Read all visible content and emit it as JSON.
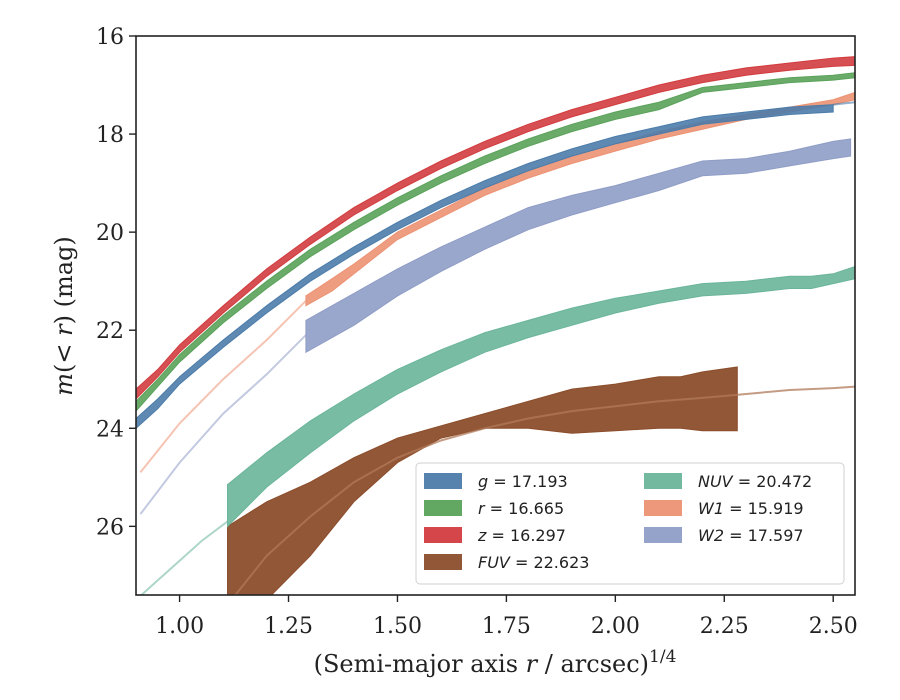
{
  "chart_data": {
    "type": "line",
    "xlabel": "(Semi-major axis r / arcsec)^{1/4}",
    "xlabel_parts": {
      "main": "(Semi-major axis ",
      "var": "r",
      "rest": " / arcsec)",
      "sup": "1/4"
    },
    "ylabel": "m(< r) (mag)",
    "ylabel_parts": {
      "m": "m",
      "paren_open": "(",
      "lt": "<",
      "r": "r",
      "paren_close": ")",
      "unit": " (mag)"
    },
    "xlim": [
      0.9,
      2.55
    ],
    "ylim": [
      27.4,
      16.0
    ],
    "y_inverted": true,
    "x_ticks": [
      1.0,
      1.25,
      1.5,
      1.75,
      2.0,
      2.25,
      2.5
    ],
    "x_tick_labels": [
      "1.00",
      "1.25",
      "1.50",
      "1.75",
      "2.00",
      "2.25",
      "2.50"
    ],
    "y_ticks": [
      16,
      18,
      20,
      22,
      24,
      26
    ],
    "y_tick_labels": [
      "16",
      "18",
      "20",
      "22",
      "24",
      "26"
    ],
    "grid": false,
    "legend_position": "lower-right",
    "legend": [
      {
        "col": 0,
        "row": 0,
        "var": "g",
        "value": "17.193",
        "color": "#4c7caa"
      },
      {
        "col": 0,
        "row": 1,
        "var": "r",
        "value": "16.665",
        "color": "#5aa25a"
      },
      {
        "col": 0,
        "row": 2,
        "var": "z",
        "value": "16.297",
        "color": "#d23c3f"
      },
      {
        "col": 0,
        "row": 3,
        "var": "FUV",
        "value": "22.623",
        "color": "#8c4e2c"
      },
      {
        "col": 1,
        "row": 0,
        "var": "NUV",
        "value": "20.472",
        "color": "#6ab59a"
      },
      {
        "col": 1,
        "row": 1,
        "var": "W1",
        "value": "15.919",
        "color": "#ec9273"
      },
      {
        "col": 1,
        "row": 2,
        "var": "W2",
        "value": "17.597",
        "color": "#8f9dc6"
      }
    ],
    "series": [
      {
        "name": "g",
        "color": "#4c7caa",
        "kind": "band",
        "x": [
          0.9,
          0.95,
          1.0,
          1.1,
          1.2,
          1.3,
          1.4,
          1.5,
          1.6,
          1.7,
          1.8,
          1.9,
          2.0,
          2.1,
          2.2,
          2.3,
          2.4,
          2.5
        ],
        "lo": [
          23.8,
          23.4,
          22.95,
          22.2,
          21.5,
          20.85,
          20.3,
          19.8,
          19.35,
          18.95,
          18.6,
          18.3,
          18.05,
          17.85,
          17.65,
          17.55,
          17.45,
          17.4
        ],
        "hi": [
          24.0,
          23.6,
          23.1,
          22.35,
          21.65,
          21.0,
          20.45,
          19.95,
          19.5,
          19.1,
          18.75,
          18.45,
          18.2,
          18.0,
          17.8,
          17.7,
          17.6,
          17.55
        ],
        "ext_x": [
          2.5,
          2.55
        ],
        "ext_y": [
          17.4,
          17.35
        ]
      },
      {
        "name": "r",
        "color": "#5aa25a",
        "kind": "band",
        "x": [
          0.9,
          0.95,
          1.0,
          1.1,
          1.2,
          1.3,
          1.4,
          1.5,
          1.6,
          1.7,
          1.8,
          1.9,
          2.0,
          2.1,
          2.2,
          2.3,
          2.4,
          2.5,
          2.55
        ],
        "lo": [
          23.45,
          23.0,
          22.5,
          21.7,
          21.0,
          20.35,
          19.8,
          19.3,
          18.85,
          18.45,
          18.1,
          17.8,
          17.55,
          17.35,
          17.05,
          16.95,
          16.85,
          16.8,
          16.75
        ],
        "hi": [
          23.65,
          23.15,
          22.65,
          21.85,
          21.15,
          20.5,
          19.95,
          19.45,
          19.0,
          18.6,
          18.25,
          17.95,
          17.7,
          17.5,
          17.15,
          17.05,
          16.95,
          16.9,
          16.85
        ]
      },
      {
        "name": "z",
        "color": "#d23c3f",
        "kind": "band",
        "x": [
          0.9,
          0.95,
          1.0,
          1.1,
          1.2,
          1.3,
          1.4,
          1.5,
          1.6,
          1.7,
          1.8,
          1.9,
          2.0,
          2.1,
          2.2,
          2.3,
          2.4,
          2.5,
          2.55
        ],
        "lo": [
          23.2,
          22.8,
          22.3,
          21.5,
          20.75,
          20.1,
          19.5,
          19.0,
          18.55,
          18.15,
          17.8,
          17.5,
          17.25,
          17.0,
          16.8,
          16.65,
          16.55,
          16.45,
          16.42
        ],
        "hi": [
          23.4,
          22.95,
          22.45,
          21.65,
          20.9,
          20.25,
          19.65,
          19.15,
          18.7,
          18.3,
          17.95,
          17.65,
          17.4,
          17.15,
          16.95,
          16.8,
          16.7,
          16.62,
          16.6
        ]
      },
      {
        "name": "W1",
        "color": "#ec9273",
        "kind": "band",
        "x": [
          1.29,
          1.35,
          1.4,
          1.5,
          1.6,
          1.7,
          1.8,
          1.9,
          2.0,
          2.1,
          2.2,
          2.3,
          2.4,
          2.5,
          2.55
        ],
        "lo": [
          21.3,
          20.95,
          20.65,
          20.0,
          19.55,
          19.1,
          18.75,
          18.45,
          18.2,
          17.95,
          17.75,
          17.6,
          17.45,
          17.3,
          17.15
        ],
        "hi": [
          21.5,
          21.2,
          20.85,
          20.15,
          19.7,
          19.25,
          18.9,
          18.6,
          18.35,
          18.1,
          17.9,
          17.7,
          17.55,
          17.4,
          17.3
        ],
        "pre_x": [
          0.91,
          1.0,
          1.1,
          1.2,
          1.29
        ],
        "pre_y": [
          24.9,
          23.9,
          23.0,
          22.2,
          21.4
        ]
      },
      {
        "name": "W2",
        "color": "#8f9dc6",
        "kind": "band",
        "x": [
          1.29,
          1.35,
          1.4,
          1.5,
          1.6,
          1.7,
          1.8,
          1.9,
          2.0,
          2.1,
          2.2,
          2.3,
          2.4,
          2.5,
          2.54
        ],
        "lo": [
          21.8,
          21.5,
          21.25,
          20.75,
          20.3,
          19.9,
          19.5,
          19.25,
          19.05,
          18.8,
          18.55,
          18.5,
          18.35,
          18.15,
          18.1
        ],
        "hi": [
          22.45,
          22.15,
          21.9,
          21.3,
          20.8,
          20.35,
          19.95,
          19.65,
          19.4,
          19.15,
          18.85,
          18.8,
          18.65,
          18.5,
          18.45
        ],
        "pre_x": [
          0.91,
          1.0,
          1.1,
          1.2,
          1.29
        ],
        "pre_y": [
          25.75,
          24.7,
          23.7,
          22.9,
          22.1
        ]
      },
      {
        "name": "NUV",
        "color": "#6ab59a",
        "kind": "band",
        "x": [
          1.11,
          1.2,
          1.3,
          1.4,
          1.5,
          1.6,
          1.7,
          1.8,
          1.9,
          2.0,
          2.1,
          2.2,
          2.3,
          2.4,
          2.45,
          2.5,
          2.55
        ],
        "lo": [
          25.15,
          24.5,
          23.85,
          23.3,
          22.8,
          22.4,
          22.05,
          21.8,
          21.55,
          21.35,
          21.2,
          21.05,
          21.0,
          20.9,
          20.9,
          20.85,
          20.7
        ],
        "hi": [
          26.0,
          25.2,
          24.5,
          23.85,
          23.3,
          22.85,
          22.45,
          22.15,
          21.9,
          21.65,
          21.45,
          21.3,
          21.25,
          21.15,
          21.15,
          21.05,
          20.95
        ],
        "pre_x": [
          0.9,
          0.95,
          1.0,
          1.05,
          1.11
        ],
        "pre_y": [
          27.5,
          27.1,
          26.7,
          26.3,
          25.9
        ]
      },
      {
        "name": "FUV",
        "color": "#8c4e2c",
        "kind": "band",
        "x": [
          1.11,
          1.2,
          1.3,
          1.4,
          1.5,
          1.6,
          1.7,
          1.8,
          1.9,
          2.0,
          2.1,
          2.15,
          2.2,
          2.28
        ],
        "lo": [
          26.0,
          25.5,
          25.1,
          24.6,
          24.2,
          23.95,
          23.7,
          23.45,
          23.2,
          23.1,
          22.95,
          22.95,
          22.85,
          22.75
        ],
        "hi": [
          27.6,
          27.5,
          26.6,
          25.5,
          24.7,
          24.2,
          24.0,
          24.0,
          24.1,
          24.05,
          24.0,
          24.0,
          24.05,
          24.05
        ],
        "mid_x": [
          1.11,
          1.2,
          1.3,
          1.4,
          1.5,
          1.6,
          1.7,
          1.8,
          1.9,
          2.0,
          2.1,
          2.2,
          2.3,
          2.4,
          2.5,
          2.55
        ],
        "mid_y": [
          27.6,
          26.6,
          25.8,
          25.1,
          24.6,
          24.25,
          24.0,
          23.8,
          23.65,
          23.55,
          23.45,
          23.38,
          23.3,
          23.22,
          23.18,
          23.15
        ]
      }
    ]
  }
}
